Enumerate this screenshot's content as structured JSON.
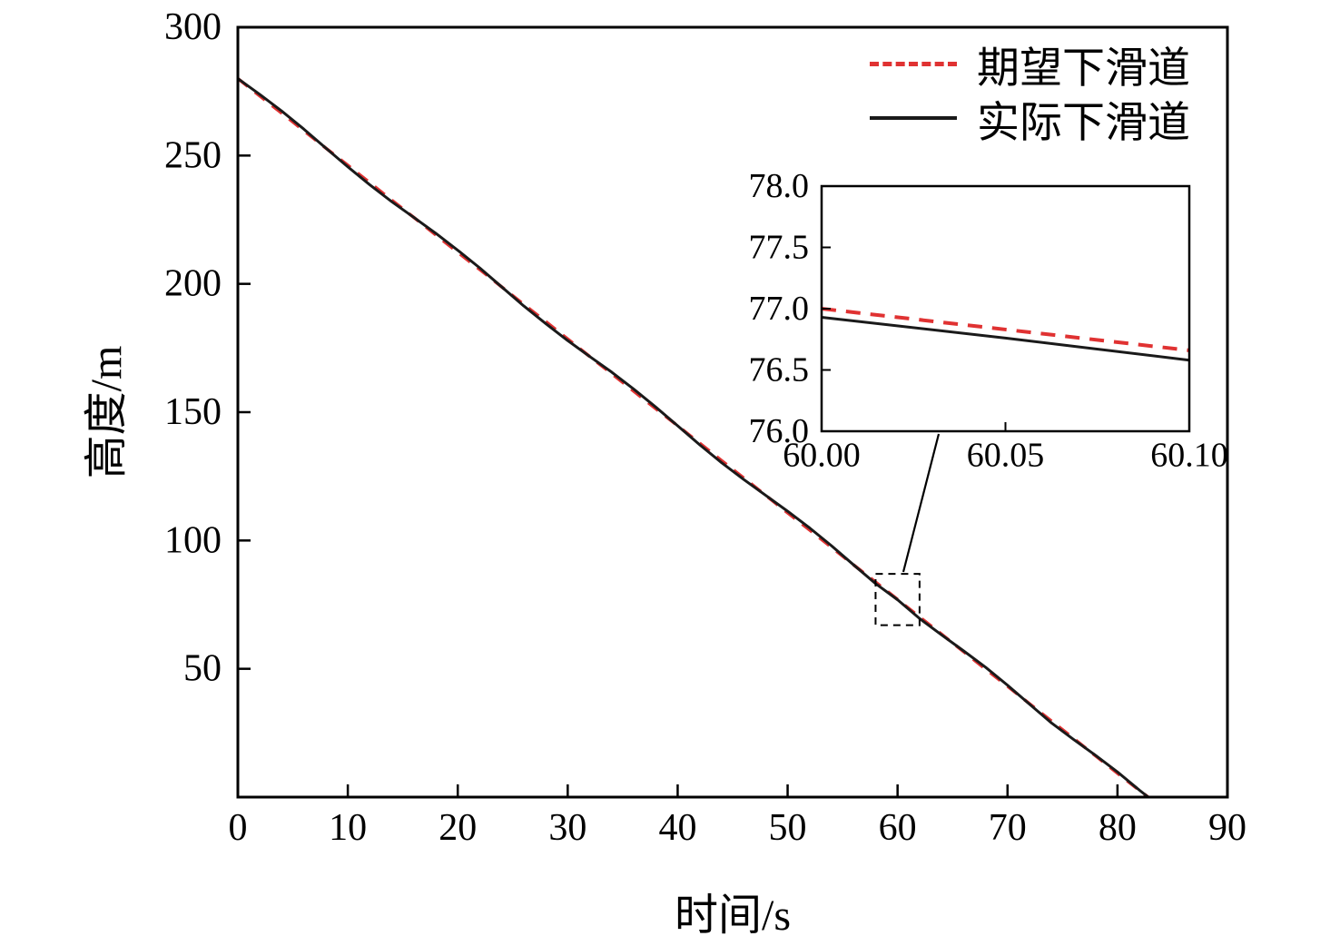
{
  "figure": {
    "background": "#ffffff",
    "colors": {
      "desired_red": "#e03232",
      "actual_black": "#1a1a1a",
      "axis": "#000000"
    }
  },
  "chart_data": {
    "type": "line",
    "title": "",
    "xlabel": "时间/s",
    "ylabel": "高度/m",
    "xlim": [
      0,
      90
    ],
    "ylim": [
      0,
      300
    ],
    "grid": false,
    "x_ticks": [
      0,
      10,
      20,
      30,
      40,
      50,
      60,
      70,
      80,
      90
    ],
    "x_tick_labels": [
      "0",
      "10",
      "20",
      "30",
      "40",
      "50",
      "60",
      "70",
      "80",
      "90"
    ],
    "y_ticks": [
      0,
      50,
      100,
      150,
      200,
      250,
      300
    ],
    "y_tick_labels": [
      "",
      "50",
      "100",
      "150",
      "200",
      "250",
      "300"
    ],
    "x": [
      0,
      2,
      4,
      6,
      8,
      10,
      12,
      14,
      16,
      18,
      20,
      22,
      24,
      26,
      28,
      30,
      32,
      34,
      36,
      38,
      40,
      42,
      44,
      46,
      48,
      50,
      52,
      54,
      56,
      58,
      60,
      62,
      64,
      66,
      68,
      70,
      72,
      74,
      76,
      78,
      80,
      82,
      82.8
    ],
    "series": [
      {
        "name": "期望下滑道",
        "style": "dashed",
        "color": "#e03232",
        "y": [
          280.0,
          273.2,
          266.5,
          259.7,
          252.9,
          246.2,
          239.4,
          232.6,
          225.9,
          219.1,
          212.3,
          205.6,
          198.8,
          192.0,
          185.3,
          178.5,
          171.7,
          165.0,
          158.2,
          151.4,
          144.7,
          137.9,
          131.1,
          124.4,
          117.6,
          110.8,
          104.1,
          97.3,
          90.5,
          83.8,
          77.0,
          70.2,
          63.5,
          56.7,
          49.9,
          43.2,
          36.4,
          29.6,
          22.9,
          16.1,
          9.3,
          2.6,
          0.0
        ]
      },
      {
        "name": "实际下滑道",
        "style": "solid",
        "color": "#1a1a1a",
        "y": [
          280.0,
          273.8,
          267.3,
          260.3,
          252.9,
          245.6,
          238.6,
          232.0,
          225.9,
          219.7,
          213.1,
          206.2,
          198.8,
          191.4,
          184.5,
          177.9,
          171.7,
          165.6,
          159.0,
          152.0,
          144.7,
          137.3,
          130.3,
          123.8,
          117.6,
          111.4,
          104.9,
          97.9,
          90.5,
          83.2,
          76.9,
          69.6,
          63.2,
          57.0,
          50.6,
          43.6,
          36.2,
          28.9,
          22.5,
          16.3,
          9.8,
          2.7,
          0.0
        ]
      }
    ],
    "legend": {
      "position": "top-right",
      "entries": [
        {
          "label": "期望下滑道",
          "color": "#e03232",
          "dash": true
        },
        {
          "label": "实际下滑道",
          "color": "#1a1a1a",
          "dash": false
        }
      ]
    },
    "inset": {
      "xlim": [
        60.0,
        60.1
      ],
      "ylim": [
        76.0,
        78.0
      ],
      "x_ticks": [
        60.0,
        60.05,
        60.1
      ],
      "x_tick_labels": [
        "60.00",
        "60.05",
        "60.10"
      ],
      "y_ticks": [
        76.0,
        76.5,
        77.0,
        77.5,
        78.0
      ],
      "y_tick_labels": [
        "76.0",
        "76.5",
        "77.0",
        "77.5",
        "78.0"
      ],
      "series": [
        {
          "name": "期望下滑道",
          "style": "dashed",
          "color": "#e03232",
          "x": [
            60.0,
            60.05,
            60.1
          ],
          "y": [
            77.0,
            76.83,
            76.66
          ]
        },
        {
          "name": "实际下滑道",
          "style": "solid",
          "color": "#1a1a1a",
          "x": [
            60.0,
            60.05,
            60.1
          ],
          "y": [
            76.93,
            76.76,
            76.58
          ]
        }
      ]
    },
    "zoom_region": {
      "x": [
        58,
        62
      ],
      "y": [
        67,
        87
      ]
    }
  }
}
